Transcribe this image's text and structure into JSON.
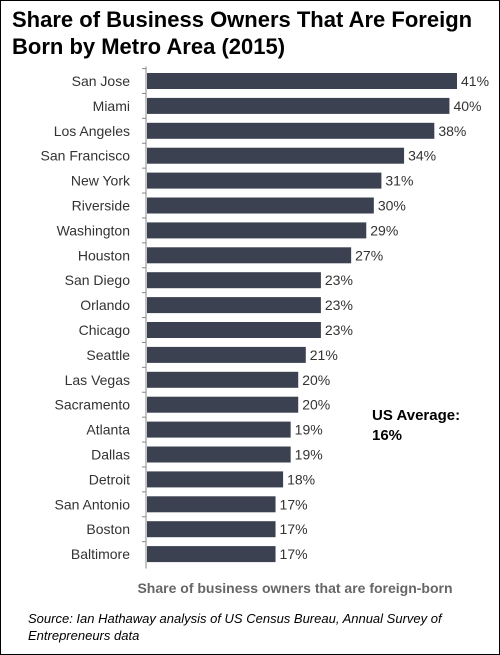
{
  "title": "Share of Business Owners That Are Foreign Born by Metro Area (2015)",
  "xlabel": "Share of business owners that are foreign-born",
  "source": "Source: Ian Hathaway analysis of US Census Bureau, Annual Survey of Entrepreneurs data",
  "us_average": {
    "label": "US Average:",
    "value": "16%"
  },
  "colors": {
    "bar": "#3b4150",
    "axis": "#888888",
    "label": "#333333"
  },
  "chart_data": {
    "type": "bar",
    "orientation": "horizontal",
    "categories": [
      "San Jose",
      "Miami",
      "Los Angeles",
      "San Francisco",
      "New York",
      "Riverside",
      "Washington",
      "Houston",
      "San Diego",
      "Orlando",
      "Chicago",
      "Seattle",
      "Las Vegas",
      "Sacramento",
      "Atlanta",
      "Dallas",
      "Detroit",
      "San Antonio",
      "Boston",
      "Baltimore"
    ],
    "values": [
      41,
      40,
      38,
      34,
      31,
      30,
      29,
      27,
      23,
      23,
      23,
      21,
      20,
      20,
      19,
      19,
      18,
      17,
      17,
      17
    ],
    "value_labels": [
      "41%",
      "40%",
      "38%",
      "34%",
      "31%",
      "30%",
      "29%",
      "27%",
      "23%",
      "23%",
      "23%",
      "21%",
      "20%",
      "20%",
      "19%",
      "19%",
      "18%",
      "17%",
      "17%",
      "17%"
    ],
    "unit": "%",
    "title": "Share of Business Owners That Are Foreign Born by Metro Area (2015)",
    "xlabel": "Share of business owners that are foreign-born",
    "ylabel": "",
    "xlim": [
      0,
      41
    ],
    "grid": false,
    "legend": "none"
  }
}
